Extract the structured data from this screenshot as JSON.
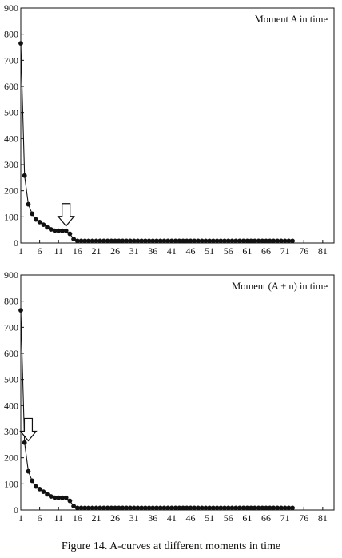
{
  "caption": "Figure 14. A-curves at different moments in time",
  "chart_data": [
    {
      "type": "line",
      "title": "Moment A in time",
      "xlabel": "",
      "ylabel": "",
      "xlim": [
        1,
        84
      ],
      "ylim": [
        0,
        900
      ],
      "x_ticks": [
        1,
        6,
        11,
        16,
        21,
        26,
        31,
        36,
        41,
        46,
        51,
        56,
        61,
        66,
        71,
        76,
        81
      ],
      "y_ticks": [
        0,
        100,
        200,
        300,
        400,
        500,
        600,
        700,
        800,
        900
      ],
      "grid": false,
      "marker_color": "#111111",
      "annotation": {
        "type": "arrow",
        "direction": "down",
        "x": 13,
        "y_tip": 65
      },
      "series": [
        {
          "x": [
            1,
            2,
            3,
            4,
            5,
            6,
            7,
            8,
            9,
            10,
            11,
            12,
            13,
            14,
            15,
            16,
            17,
            18,
            19,
            20,
            21,
            22,
            23,
            24,
            25,
            26,
            27,
            28,
            29,
            30,
            31,
            32,
            33,
            34,
            35,
            36,
            37,
            38,
            39,
            40,
            41,
            42,
            43,
            44,
            45,
            46,
            47,
            48,
            49,
            50,
            51,
            52,
            53,
            54,
            55,
            56,
            57,
            58,
            59,
            60,
            61,
            62,
            63,
            64,
            65,
            66,
            67,
            68,
            69,
            70,
            71,
            72,
            73
          ],
          "values": [
            765,
            258,
            148,
            112,
            90,
            80,
            70,
            60,
            52,
            47,
            47,
            47,
            47,
            35,
            15,
            8,
            8,
            8,
            8,
            8,
            8,
            8,
            8,
            8,
            8,
            8,
            8,
            8,
            8,
            8,
            8,
            8,
            8,
            8,
            8,
            8,
            8,
            8,
            8,
            8,
            8,
            8,
            8,
            8,
            8,
            8,
            8,
            8,
            8,
            8,
            8,
            8,
            8,
            8,
            8,
            8,
            8,
            8,
            8,
            8,
            8,
            8,
            8,
            8,
            8,
            8,
            8,
            8,
            8,
            8,
            8,
            8,
            8
          ]
        }
      ]
    },
    {
      "type": "line",
      "title": "Moment (A + n) in time",
      "xlabel": "",
      "ylabel": "",
      "xlim": [
        1,
        84
      ],
      "ylim": [
        0,
        900
      ],
      "x_ticks": [
        1,
        6,
        11,
        16,
        21,
        26,
        31,
        36,
        41,
        46,
        51,
        56,
        61,
        66,
        71,
        76,
        81
      ],
      "y_ticks": [
        0,
        100,
        200,
        300,
        400,
        500,
        600,
        700,
        800,
        900
      ],
      "grid": false,
      "marker_color": "#111111",
      "annotation": {
        "type": "arrow",
        "direction": "down",
        "x": 3,
        "y_tip": 265
      },
      "series": [
        {
          "x": [
            1,
            2,
            3,
            4,
            5,
            6,
            7,
            8,
            9,
            10,
            11,
            12,
            13,
            14,
            15,
            16,
            17,
            18,
            19,
            20,
            21,
            22,
            23,
            24,
            25,
            26,
            27,
            28,
            29,
            30,
            31,
            32,
            33,
            34,
            35,
            36,
            37,
            38,
            39,
            40,
            41,
            42,
            43,
            44,
            45,
            46,
            47,
            48,
            49,
            50,
            51,
            52,
            53,
            54,
            55,
            56,
            57,
            58,
            59,
            60,
            61,
            62,
            63,
            64,
            65,
            66,
            67,
            68,
            69,
            70,
            71,
            72,
            73
          ],
          "values": [
            765,
            258,
            148,
            112,
            90,
            80,
            70,
            60,
            52,
            47,
            47,
            47,
            47,
            35,
            15,
            8,
            8,
            8,
            8,
            8,
            8,
            8,
            8,
            8,
            8,
            8,
            8,
            8,
            8,
            8,
            8,
            8,
            8,
            8,
            8,
            8,
            8,
            8,
            8,
            8,
            8,
            8,
            8,
            8,
            8,
            8,
            8,
            8,
            8,
            8,
            8,
            8,
            8,
            8,
            8,
            8,
            8,
            8,
            8,
            8,
            8,
            8,
            8,
            8,
            8,
            8,
            8,
            8,
            8,
            8,
            8,
            8,
            8
          ]
        }
      ]
    }
  ]
}
